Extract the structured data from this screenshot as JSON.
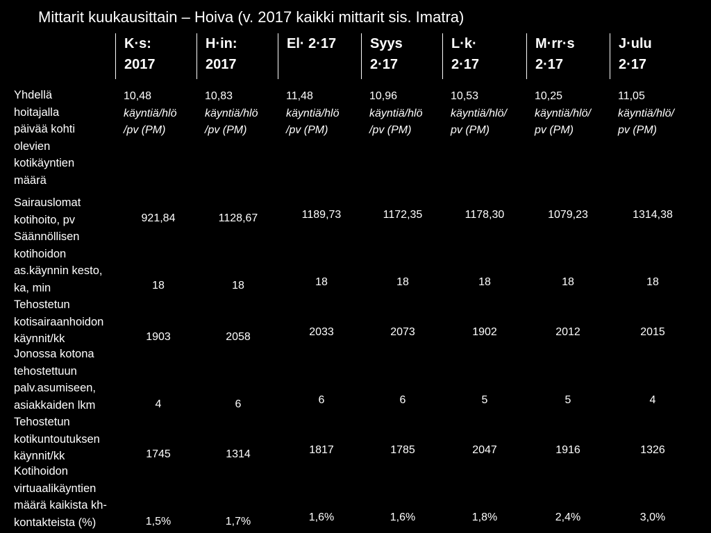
{
  "title": "Mittarit kuukausittain – Hoiva (v. 2017 kaikki mittarit sis. Imatra)",
  "columns": [
    {
      "line1": "K·s:",
      "line2": "2017"
    },
    {
      "line1": "H·in:",
      "line2": "2017"
    },
    {
      "line1": "El· 2·17",
      "line2": ""
    },
    {
      "line1": "Syys",
      "line2": "2·17"
    },
    {
      "line1": "L·k·",
      "line2": "2·17"
    },
    {
      "line1": "M·rr·s",
      "line2": "2·17"
    },
    {
      "line1": "J·ulu",
      "line2": "2·17"
    }
  ],
  "rows": [
    {
      "label": [
        "Yhdellä",
        "hoitajalla",
        "päivää kohti",
        "olevien",
        "kotikäyntien",
        "määrä"
      ],
      "cells": [
        {
          "v": "10,48",
          "u1": "käyntiä/hlö",
          "u2": "/pv (PM)"
        },
        {
          "v": "10,83",
          "u1": "käyntiä/hlö",
          "u2": "/pv (PM)"
        },
        {
          "v": "11,48",
          "u1": "käyntiä/hlö",
          "u2": "/pv (PM)"
        },
        {
          "v": "10,96",
          "u1": "käyntiä/hlö",
          "u2": "/pv (PM)"
        },
        {
          "v": "10,53",
          "u1": "käyntiä/hlö/",
          "u2": "pv (PM)"
        },
        {
          "v": "10,25",
          "u1": "käyntiä/hlö/",
          "u2": "pv (PM)"
        },
        {
          "v": "11,05",
          "u1": "käyntiä/hlö/",
          "u2": "pv (PM)"
        }
      ]
    },
    {
      "label": [
        "Sairauslomat",
        "kotihoito, pv"
      ],
      "values": [
        "921,84",
        "1128,67",
        "1189,73",
        "1172,35",
        "1178,30",
        "1079,23",
        "1314,38"
      ]
    },
    {
      "label": [
        "Säännöllisen",
        "kotihoidon",
        "as.käynnin kesto,",
        "ka, min"
      ],
      "values": [
        "18",
        "18",
        "18",
        "18",
        "18",
        "18",
        "18"
      ]
    },
    {
      "label": [
        "Tehostetun",
        "kotisairaanhoidon",
        "käynnit/kk"
      ],
      "values": [
        "1903",
        "2058",
        "2033",
        "2073",
        "1902",
        "2012",
        "2015"
      ]
    },
    {
      "label": [
        "Jonossa kotona",
        "tehostettuun",
        "palv.asumiseen,",
        "asiakkaiden lkm"
      ],
      "values": [
        "4",
        "6",
        "6",
        "6",
        "5",
        "5",
        "4"
      ]
    },
    {
      "label": [
        "Tehostetun",
        "kotikuntoutuksen",
        "käynnit/kk"
      ],
      "values": [
        "1745",
        "1314",
        "1817",
        "1785",
        "2047",
        "1916",
        "1326"
      ]
    },
    {
      "label": [
        "Kotihoidon",
        "virtuaalikäyntien",
        "määrä kaikista kh-",
        "kontakteista (%)"
      ],
      "values": [
        "1,5%",
        "1,7%",
        "1,6%",
        "1,6%",
        "1,8%",
        "2,4%",
        "3,0%"
      ]
    }
  ]
}
